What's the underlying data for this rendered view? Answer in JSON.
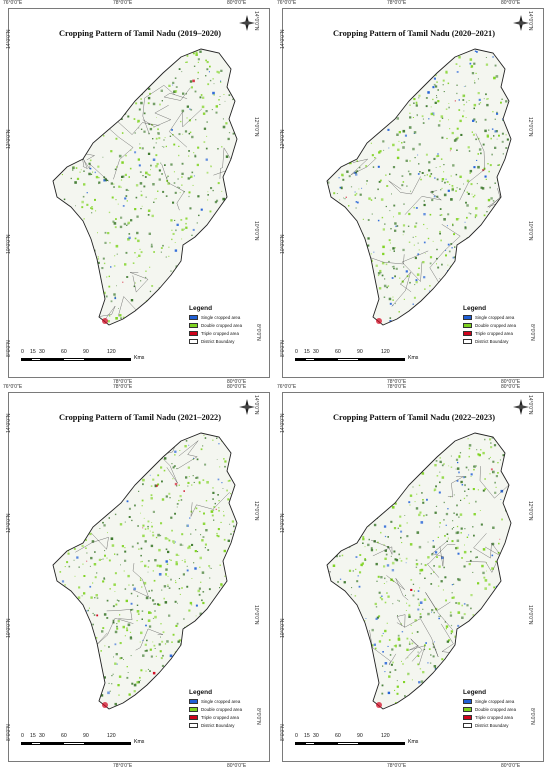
{
  "panels": [
    {
      "title": "Cropping Pattern of Tamil Nadu (2019–2020)"
    },
    {
      "title": "Cropping Pattern of Tamil Nadu (2020–2021)"
    },
    {
      "title": "Cropping Pattern of Tamil Nadu (2021–2022)"
    },
    {
      "title": "Cropping Pattern of Tamil Nadu (2022–2023)"
    }
  ],
  "axis": {
    "lon": [
      "76°0'0\"E",
      "78°0'0\"E",
      "80°0'0\"E"
    ],
    "lat": [
      "14°0'0\"N",
      "12°0'0\"N",
      "10°0'0\"N",
      "8°0'0\"N"
    ]
  },
  "legend": {
    "title": "Legend",
    "items": [
      {
        "label": "Single cropped area",
        "color": "#1f5fd6"
      },
      {
        "label": "Double cropped area",
        "color": "#7ed321"
      },
      {
        "label": "Triple cropped area",
        "color": "#d0021b"
      },
      {
        "label": "District Boundary",
        "color": "#ffffff"
      }
    ]
  },
  "scale": {
    "ticks": [
      "0",
      "15",
      "30",
      "60",
      "90",
      "120"
    ],
    "units": "Kms"
  },
  "colors": {
    "single": "#1f5fd6",
    "double": "#7ed321",
    "triple": "#d0021b",
    "dense": "#3e7a2e",
    "boundary": "#222222"
  }
}
